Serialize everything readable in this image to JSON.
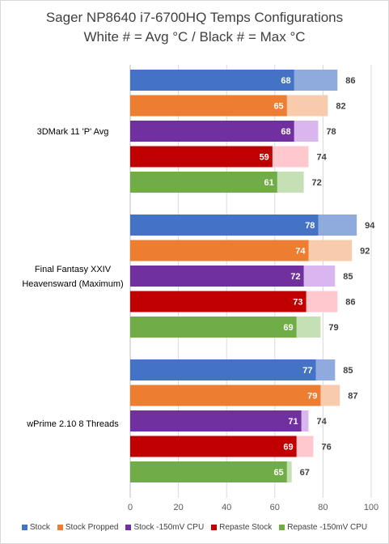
{
  "chart_data": {
    "type": "bar",
    "orientation": "horizontal",
    "title": "Sager NP8640 i7-6700HQ Temps Configurations",
    "subtitle": "White # = Avg °C / Black # = Max °C",
    "xlim": [
      0,
      100
    ],
    "xticks": [
      0,
      20,
      40,
      60,
      80,
      100
    ],
    "grid": true,
    "legend_position": "bottom",
    "categories": [
      "3DMark 11 'P' Avg",
      "Final Fantasy XXIV Heavensward (Maximum)",
      "wPrime 2.10 8 Threads"
    ],
    "series": [
      {
        "name": "Stock",
        "color": "#4472C4",
        "max_color": "#8FAADC",
        "avg": [
          68,
          78,
          77
        ],
        "max": [
          86,
          94,
          85
        ]
      },
      {
        "name": "Stock Propped",
        "color": "#ED7D31",
        "max_color": "#F8CBAD",
        "avg": [
          65,
          74,
          79
        ],
        "max": [
          82,
          92,
          87
        ]
      },
      {
        "name": "Stock -150mV CPU",
        "color": "#7030A0",
        "max_color": "#D9B7EE",
        "avg": [
          68,
          72,
          71
        ],
        "max": [
          78,
          85,
          74
        ]
      },
      {
        "name": "Repaste Stock",
        "color": "#C00000",
        "max_color": "#FFC7CE",
        "avg": [
          59,
          73,
          69
        ],
        "max": [
          74,
          86,
          76
        ]
      },
      {
        "name": "Repaste -150mV CPU",
        "color": "#70AD47",
        "max_color": "#C5E0B4",
        "avg": [
          61,
          69,
          65
        ],
        "max": [
          72,
          79,
          67
        ]
      }
    ]
  }
}
